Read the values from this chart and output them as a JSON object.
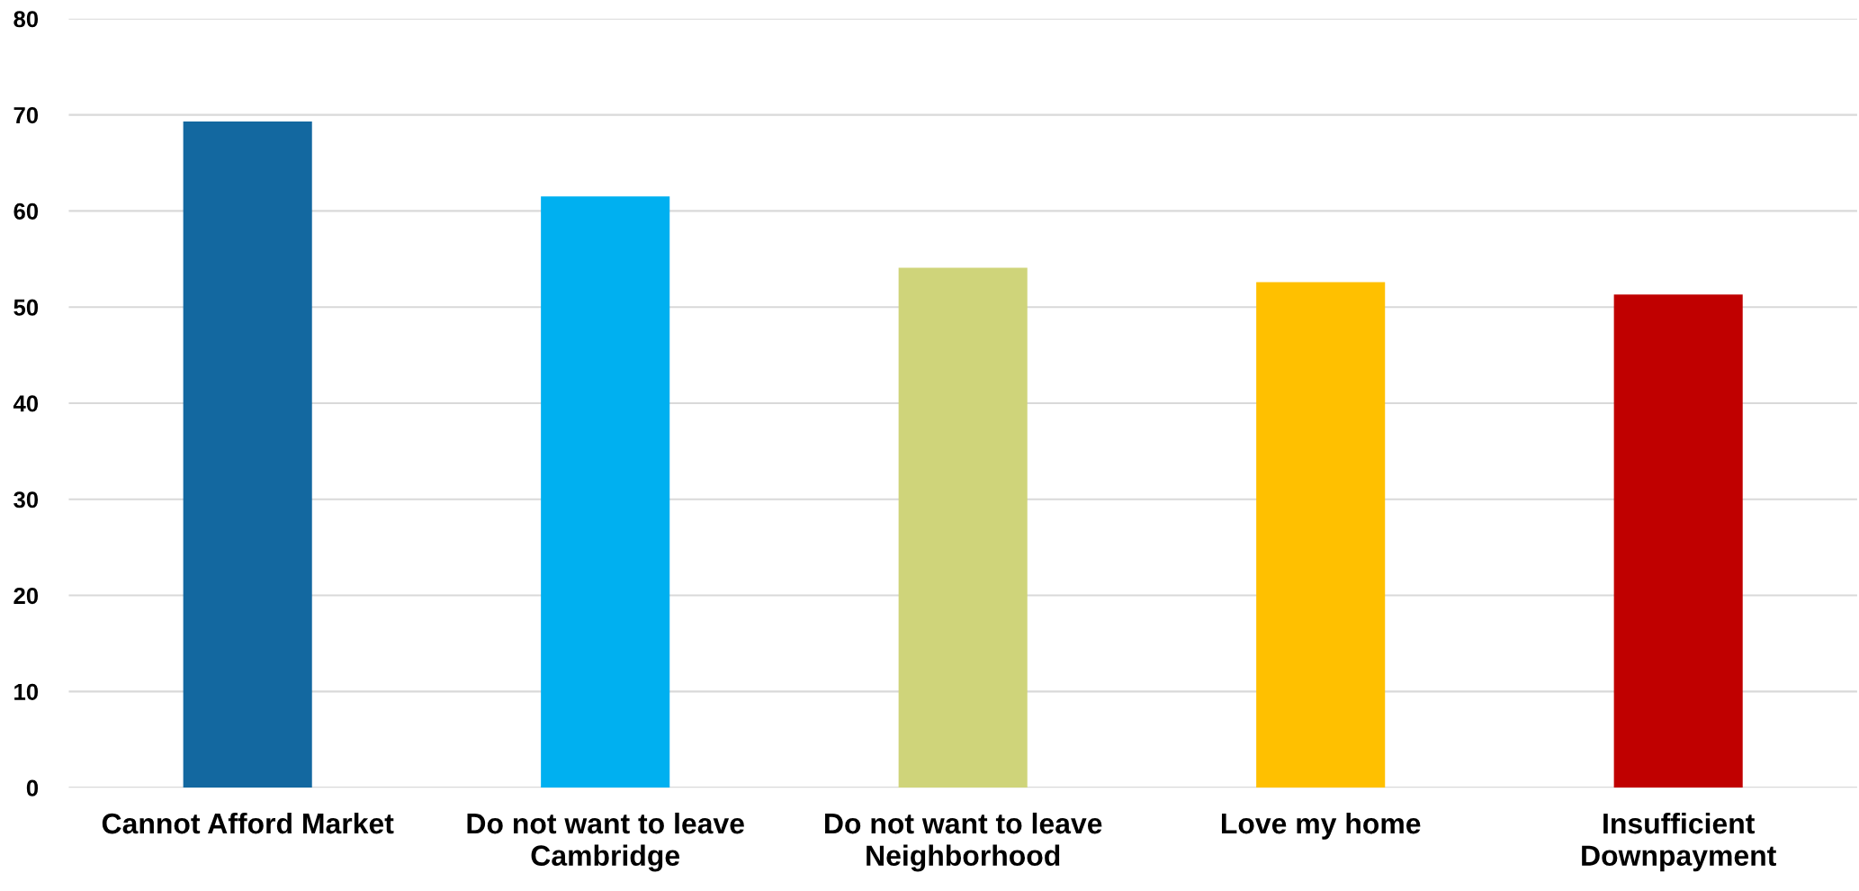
{
  "chart_data": {
    "type": "bar",
    "categories": [
      "Cannot Afford Market",
      "Do not want to leave\nCambridge",
      "Do not want to leave\nNeighborhood",
      "Love my home",
      "Insufficient\nDownpayment"
    ],
    "values": [
      69.3,
      61.5,
      54.1,
      52.6,
      51.3
    ],
    "colors": [
      "#1368a0",
      "#00b0f0",
      "#cfd47a",
      "#ffc000",
      "#c00000"
    ],
    "ylim": [
      0,
      80
    ],
    "yticks": [
      0,
      10,
      20,
      30,
      40,
      50,
      60,
      70,
      80
    ],
    "grid": "y"
  }
}
